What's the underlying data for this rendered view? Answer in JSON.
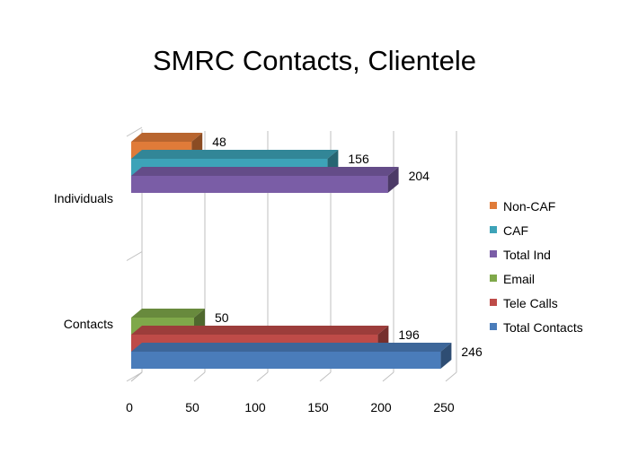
{
  "chart_data": {
    "type": "bar",
    "orientation": "horizontal",
    "style": "3d-clustered",
    "title": "SMRC Contacts, Clientele",
    "xlabel": "",
    "ylabel": "",
    "xlim": [
      0,
      250
    ],
    "x_ticks": [
      "0",
      "50",
      "100",
      "150",
      "200",
      "250"
    ],
    "grid": true,
    "legend_position": "right",
    "categories": [
      "Individuals",
      "Contacts"
    ],
    "groups": [
      {
        "category": "Individuals",
        "bars": [
          {
            "name": "Non-CAF",
            "value": 48,
            "label": "48",
            "color": "#E07B39"
          },
          {
            "name": "CAF",
            "value": 156,
            "label": "156",
            "color": "#3DA3B8"
          },
          {
            "name": "Total Ind",
            "value": 204,
            "label": "204",
            "color": "#7A5DA6"
          }
        ]
      },
      {
        "category": "Contacts",
        "bars": [
          {
            "name": "Email",
            "value": 50,
            "label": "50",
            "color": "#7FA84A"
          },
          {
            "name": "Tele Calls",
            "value": 196,
            "label": "196",
            "color": "#BE4B48"
          },
          {
            "name": "Total Contacts",
            "value": 246,
            "label": "246",
            "color": "#4A7CBA"
          }
        ]
      }
    ],
    "legend": [
      {
        "name": "Non-CAF",
        "color": "#E07B39"
      },
      {
        "name": "CAF",
        "color": "#3DA3B8"
      },
      {
        "name": "Total Ind",
        "color": "#7A5DA6"
      },
      {
        "name": "Email",
        "color": "#7FA84A"
      },
      {
        "name": "Tele Calls",
        "color": "#BE4B48"
      },
      {
        "name": "Total Contacts",
        "color": "#4A7CBA"
      }
    ]
  }
}
